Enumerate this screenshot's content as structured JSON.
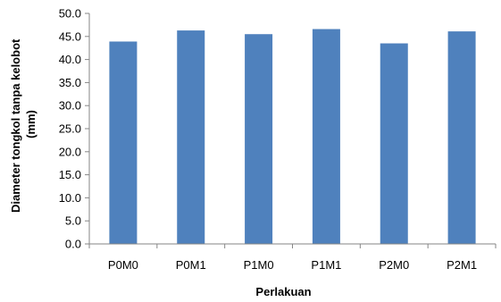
{
  "chart_data": {
    "type": "bar",
    "title": "",
    "xlabel": "Perlakuan",
    "ylabel_lines": [
      "Diameter tongkol tanpa kelobot",
      "(mm)"
    ],
    "categories": [
      "P0M0",
      "P0M1",
      "P1M0",
      "P1M1",
      "P2M0",
      "P2M1"
    ],
    "values": [
      43.9,
      46.3,
      45.5,
      46.6,
      43.5,
      46.1
    ],
    "ylim": [
      0,
      50
    ],
    "yticks": [
      "0.0",
      "5.0",
      "10.0",
      "15.0",
      "20.0",
      "25.0",
      "30.0",
      "35.0",
      "40.0",
      "45.0",
      "50.0"
    ],
    "grid": false,
    "legend": "none",
    "bar_color": "#4F81BD",
    "axis_color": "#868686"
  }
}
